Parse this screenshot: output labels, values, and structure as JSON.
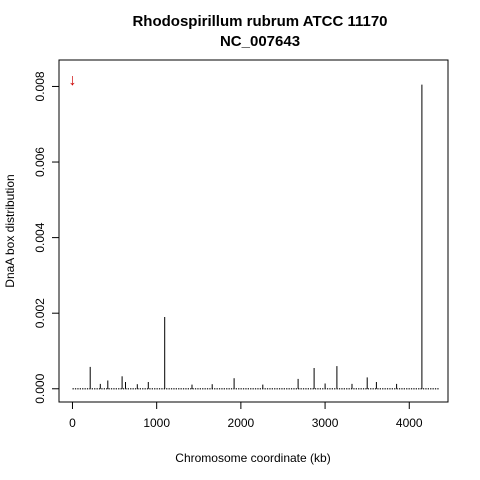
{
  "chart_data": {
    "type": "bar",
    "title": "Rhodospirillum rubrum ATCC 11170",
    "subtitle": "NC_007643",
    "xlabel": "Chromosome coordinate (kb)",
    "ylabel": "DnaA box distribution",
    "xlim": [
      -160,
      4460
    ],
    "ylim": [
      -0.00035,
      0.0087
    ],
    "xticks": [
      0,
      1000,
      2000,
      3000,
      4000
    ],
    "xtick_labels": [
      "0",
      "1000",
      "2000",
      "3000",
      "4000"
    ],
    "yticks": [
      0,
      0.002,
      0.004,
      0.006,
      0.008
    ],
    "ytick_labels": [
      "0.000",
      "0.002",
      "0.004",
      "0.006",
      "0.008"
    ],
    "grid": false,
    "legend": "none",
    "x_extent_kb": [
      0,
      4350
    ],
    "series": [
      {
        "x": [
          210,
          330,
          420,
          590,
          630,
          770,
          900,
          1095,
          1420,
          1660,
          1920,
          2260,
          2680,
          2870,
          3000,
          3140,
          3320,
          3500,
          3610,
          3850,
          4150
        ],
        "values": [
          0.00058,
          0.00013,
          0.00022,
          0.00033,
          0.00018,
          0.00012,
          0.00018,
          0.0019,
          0.00011,
          0.00012,
          0.00028,
          0.00011,
          0.00026,
          0.00055,
          0.00014,
          0.0006,
          0.00013,
          0.0003,
          0.00018,
          0.00013,
          0.00805
        ]
      }
    ],
    "annotation": {
      "symbol": "↓",
      "x": 0,
      "y": 0.0082,
      "color": "#cc0000"
    },
    "colors": {
      "bars": "#000000",
      "arrow": "#cc0000",
      "axes": "#000000"
    }
  }
}
